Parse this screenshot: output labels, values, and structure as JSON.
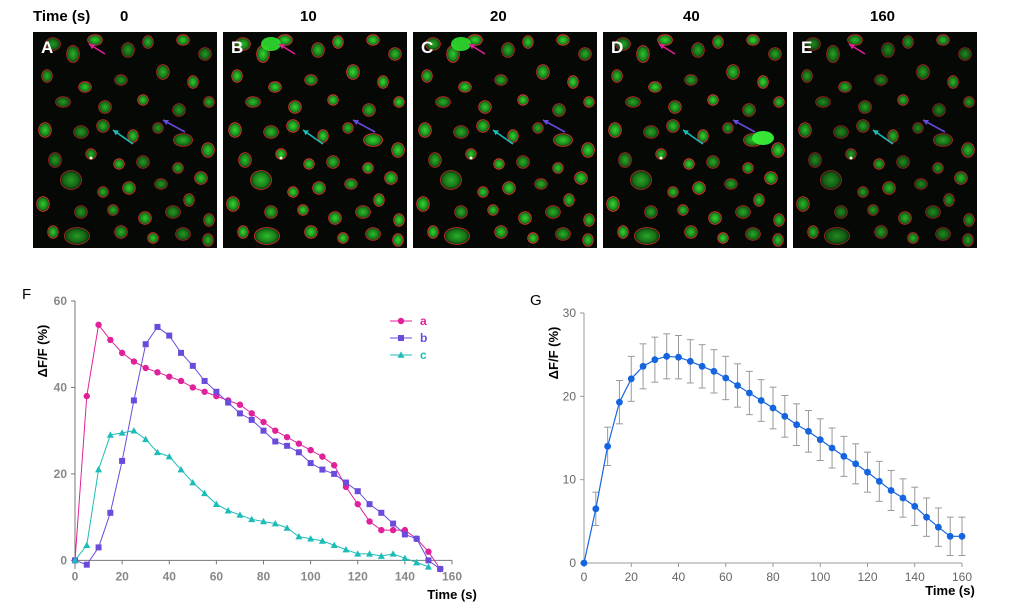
{
  "header": {
    "time_label": "Time (s)",
    "times": [
      "0",
      "10",
      "20",
      "40",
      "160"
    ]
  },
  "panels": [
    "A",
    "B",
    "C",
    "D",
    "E"
  ],
  "colors": {
    "a": "#e0229a",
    "b": "#6a4bdc",
    "c": "#1cbcb8",
    "mean": "#1565e0",
    "cell_outline": "#e33232"
  },
  "chart_data": [
    {
      "type": "line",
      "panel": "F",
      "xlabel": "Time (s)",
      "ylabel": "ΔF/F (%)",
      "xlim": [
        0,
        160
      ],
      "ylim": [
        -2,
        60
      ],
      "xticks": [
        "0",
        "20",
        "40",
        "60",
        "80",
        "100",
        "120",
        "140",
        "160"
      ],
      "yticks": [
        "0",
        "20",
        "40",
        "60"
      ],
      "legend": [
        "a",
        "b",
        "c"
      ],
      "series": [
        {
          "name": "a",
          "marker": "circle",
          "x": [
            0,
            5,
            10,
            15,
            20,
            25,
            30,
            35,
            40,
            45,
            50,
            55,
            60,
            65,
            70,
            75,
            80,
            85,
            90,
            95,
            100,
            105,
            110,
            115,
            120,
            125,
            130,
            135,
            140,
            145,
            150,
            155
          ],
          "y": [
            0,
            38,
            54.5,
            51,
            48,
            46,
            44.5,
            43.5,
            42.5,
            41.5,
            40,
            39,
            38,
            37,
            36,
            34,
            32,
            30,
            28.5,
            27,
            25.5,
            24,
            22,
            17,
            13,
            9,
            7,
            7,
            7,
            5,
            2,
            -2
          ]
        },
        {
          "name": "b",
          "marker": "square",
          "x": [
            0,
            5,
            10,
            15,
            20,
            25,
            30,
            35,
            40,
            45,
            50,
            55,
            60,
            65,
            70,
            75,
            80,
            85,
            90,
            95,
            100,
            105,
            110,
            115,
            120,
            125,
            130,
            135,
            140,
            145,
            150,
            155
          ],
          "y": [
            0,
            -1,
            3,
            11,
            23,
            37,
            50,
            54,
            52,
            48,
            45,
            41.5,
            39,
            36.5,
            34,
            32.5,
            30,
            27.5,
            26.5,
            25,
            22.5,
            21,
            20,
            18,
            16,
            13,
            11,
            8.5,
            6,
            5,
            0,
            -2
          ]
        },
        {
          "name": "c",
          "marker": "triangle",
          "x": [
            0,
            5,
            10,
            15,
            20,
            25,
            30,
            35,
            40,
            45,
            50,
            55,
            60,
            65,
            70,
            75,
            80,
            85,
            90,
            95,
            100,
            105,
            110,
            115,
            120,
            125,
            130,
            135,
            140,
            145,
            150
          ],
          "y": [
            0,
            3.5,
            21,
            29,
            29.5,
            30,
            28,
            25,
            24,
            21,
            18,
            15.5,
            13,
            11.5,
            10.5,
            9.5,
            9,
            8.5,
            7.5,
            5.5,
            5,
            4.5,
            3.5,
            2.5,
            1.5,
            1.5,
            1,
            1.5,
            0.5,
            -0.5,
            -1.5
          ]
        }
      ]
    },
    {
      "type": "line",
      "panel": "G",
      "xlabel": "Time (s)",
      "ylabel": "ΔF/F (%)",
      "xlim": [
        0,
        160
      ],
      "ylim": [
        0,
        30
      ],
      "xticks": [
        "0",
        "20",
        "40",
        "60",
        "80",
        "100",
        "120",
        "140",
        "160"
      ],
      "yticks": [
        "0",
        "10",
        "20",
        "30"
      ],
      "series": [
        {
          "name": "mean",
          "marker": "circle",
          "x": [
            0,
            5,
            10,
            15,
            20,
            25,
            30,
            35,
            40,
            45,
            50,
            55,
            60,
            65,
            70,
            75,
            80,
            85,
            90,
            95,
            100,
            105,
            110,
            115,
            120,
            125,
            130,
            135,
            140,
            145,
            150,
            155,
            160
          ],
          "y": [
            0,
            6.5,
            14,
            19.3,
            22.1,
            23.6,
            24.4,
            24.8,
            24.7,
            24.2,
            23.6,
            23,
            22.2,
            21.3,
            20.4,
            19.5,
            18.6,
            17.6,
            16.6,
            15.8,
            14.8,
            13.8,
            12.8,
            11.9,
            10.9,
            9.8,
            8.7,
            7.8,
            6.8,
            5.5,
            4.3,
            3.2,
            3.2
          ],
          "error": [
            0,
            2,
            2.3,
            2.6,
            2.7,
            2.7,
            2.7,
            2.7,
            2.6,
            2.6,
            2.6,
            2.6,
            2.6,
            2.6,
            2.6,
            2.5,
            2.5,
            2.5,
            2.5,
            2.5,
            2.5,
            2.4,
            2.4,
            2.4,
            2.4,
            2.4,
            2.4,
            2.3,
            2.3,
            2.3,
            2.3,
            2.3,
            2.3
          ]
        }
      ]
    }
  ]
}
